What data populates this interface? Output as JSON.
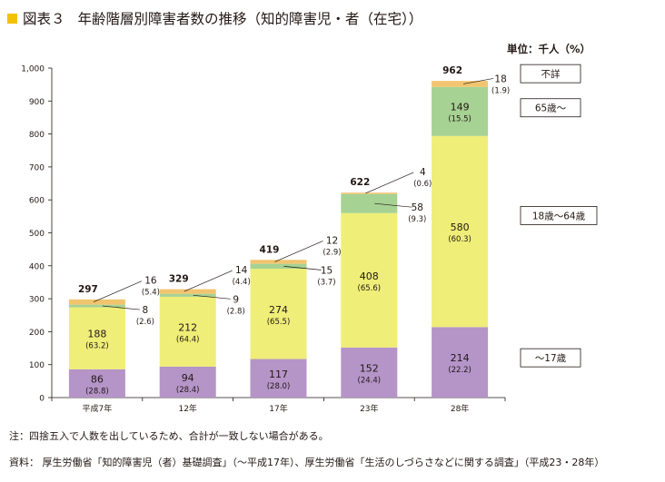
{
  "header": {
    "prefix": "図表３",
    "title": "年齢階層別障害者数の推移（知的障害児・者（在宅））",
    "unit": "単位：千人（%）"
  },
  "notes": {
    "note": "注：四捨五入で人数を出しているため、合計が一致しない場合がある。",
    "source": "資料：  厚生労働省「知的障害児（者）基礎調査」（〜平成17年）、厚生労働省「生活のしづらさなどに関する調査」（平成23・28年）"
  },
  "colors": {
    "under17": "#b594c8",
    "age18to64": "#eeee78",
    "over65": "#a6d293",
    "unknown": "#f2c46f"
  },
  "chart_data": {
    "type": "bar",
    "stacked": true,
    "categories": [
      "平成7年",
      "12年",
      "17年",
      "23年",
      "28年"
    ],
    "ylim": [
      0,
      1000
    ],
    "yticks": [
      "0",
      "100",
      "200",
      "300",
      "400",
      "500",
      "600",
      "700",
      "800",
      "900",
      "1,000"
    ],
    "totals": [
      "297",
      "329",
      "419",
      "622",
      "962"
    ],
    "series": [
      {
        "name": "〜17歳",
        "values": [
          86,
          94,
          117,
          152,
          214
        ],
        "value_labels": [
          "86",
          "94",
          "117",
          "152",
          "214"
        ],
        "percent_labels": [
          "(28.8)",
          "(28.4)",
          "(28.0)",
          "(24.4)",
          "(22.2)"
        ]
      },
      {
        "name": "18歳〜64歳",
        "values": [
          188,
          212,
          274,
          408,
          580
        ],
        "value_labels": [
          "188",
          "212",
          "274",
          "408",
          "580"
        ],
        "percent_labels": [
          "(63.2)",
          "(64.4)",
          "(65.5)",
          "(65.6)",
          "(60.3)"
        ]
      },
      {
        "name": "65歳〜",
        "values": [
          8,
          9,
          15,
          58,
          149
        ],
        "value_labels": [
          "8",
          "9",
          "15",
          "58",
          "149"
        ],
        "percent_labels": [
          "(2.6)",
          "(2.8)",
          "(3.7)",
          "(9.3)",
          "(15.5)"
        ]
      },
      {
        "name": "不詳",
        "values": [
          16,
          14,
          12,
          4,
          18
        ],
        "value_labels": [
          "16",
          "14",
          "12",
          "4",
          "18"
        ],
        "percent_labels": [
          "(5.4)",
          "(4.4)",
          "(2.9)",
          "(0.6)",
          "(1.9)"
        ]
      }
    ]
  }
}
